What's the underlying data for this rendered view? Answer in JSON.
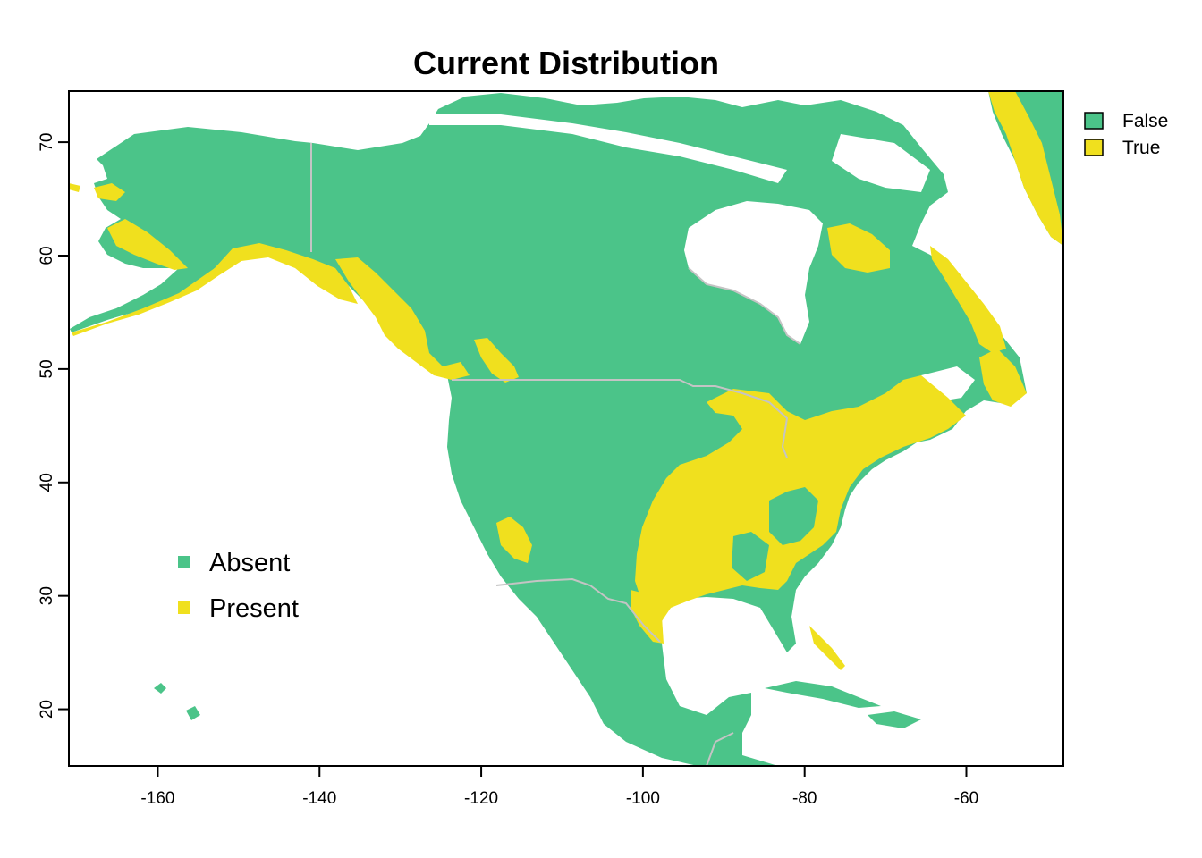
{
  "title": "Current Distribution",
  "colors": {
    "absent": "#4BC489",
    "present": "#F0E01E",
    "border": "#c4c4c4",
    "background": "#ffffff"
  },
  "axes": {
    "x_ticks": [
      -160,
      -140,
      -120,
      -100,
      -80,
      -60
    ],
    "y_ticks": [
      20,
      30,
      40,
      50,
      60,
      70
    ],
    "x_range": [
      -171,
      -48
    ],
    "y_range": [
      15,
      74.5
    ]
  },
  "legend_outer": {
    "items": [
      {
        "label": "False",
        "color": "#4BC489"
      },
      {
        "label": "True",
        "color": "#F0E01E"
      }
    ]
  },
  "legend_inner": {
    "items": [
      {
        "label": "Absent",
        "color": "#4BC489"
      },
      {
        "label": "Present",
        "color": "#F0E01E"
      }
    ]
  }
}
